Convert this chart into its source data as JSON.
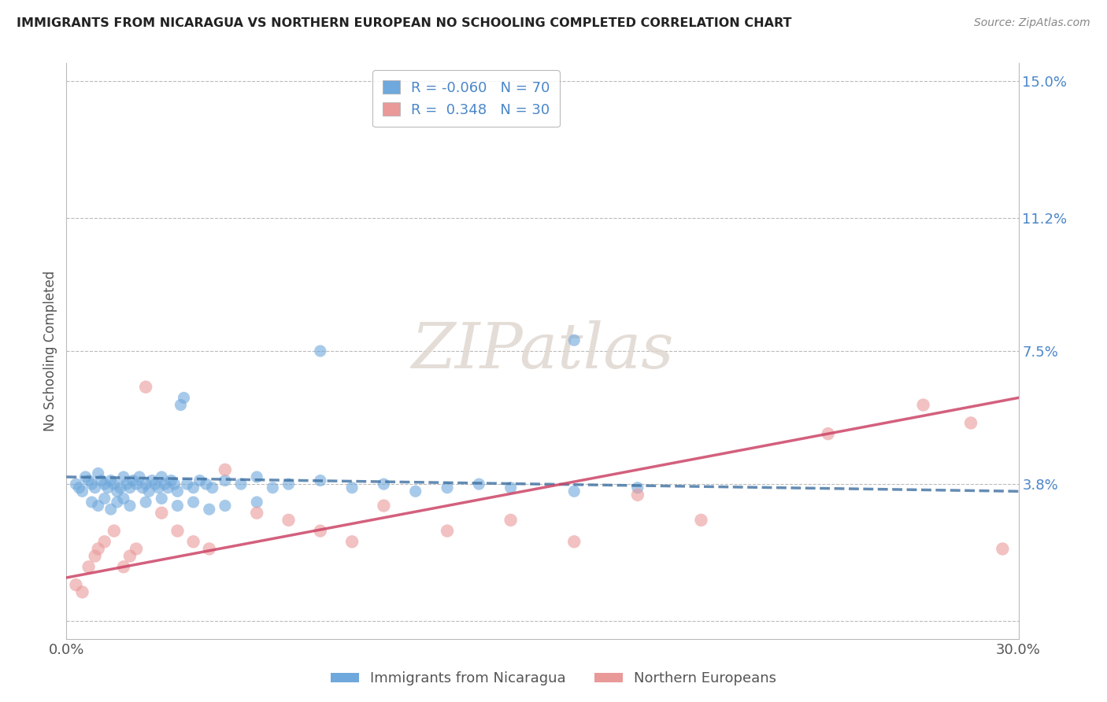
{
  "title": "IMMIGRANTS FROM NICARAGUA VS NORTHERN EUROPEAN NO SCHOOLING COMPLETED CORRELATION CHART",
  "source": "Source: ZipAtlas.com",
  "ylabel": "No Schooling Completed",
  "watermark": "ZIPatlas",
  "xlim": [
    0.0,
    0.3
  ],
  "ylim": [
    -0.005,
    0.155
  ],
  "yticks": [
    0.0,
    0.038,
    0.075,
    0.112,
    0.15
  ],
  "ytick_labels": [
    "",
    "3.8%",
    "7.5%",
    "11.2%",
    "15.0%"
  ],
  "xticks": [
    0.0,
    0.3
  ],
  "xtick_labels": [
    "0.0%",
    "30.0%"
  ],
  "blue_R": -0.06,
  "blue_N": 70,
  "pink_R": 0.348,
  "pink_N": 30,
  "blue_color": "#6fa8dc",
  "pink_color": "#ea9999",
  "blue_line_color": "#3d6fa0",
  "pink_line_color": "#cc4466",
  "blue_label": "Immigrants from Nicaragua",
  "pink_label": "Northern Europeans",
  "blue_scatter_x": [
    0.003,
    0.004,
    0.005,
    0.006,
    0.007,
    0.008,
    0.009,
    0.01,
    0.011,
    0.012,
    0.013,
    0.014,
    0.015,
    0.016,
    0.017,
    0.018,
    0.019,
    0.02,
    0.021,
    0.022,
    0.023,
    0.024,
    0.025,
    0.026,
    0.027,
    0.028,
    0.029,
    0.03,
    0.031,
    0.032,
    0.033,
    0.034,
    0.035,
    0.036,
    0.037,
    0.038,
    0.04,
    0.042,
    0.044,
    0.046,
    0.05,
    0.055,
    0.06,
    0.065,
    0.07,
    0.08,
    0.09,
    0.1,
    0.11,
    0.12,
    0.13,
    0.14,
    0.16,
    0.18,
    0.008,
    0.01,
    0.012,
    0.014,
    0.016,
    0.018,
    0.02,
    0.025,
    0.03,
    0.035,
    0.04,
    0.045,
    0.05,
    0.06,
    0.08,
    0.16
  ],
  "blue_scatter_y": [
    0.038,
    0.037,
    0.036,
    0.04,
    0.039,
    0.038,
    0.037,
    0.041,
    0.039,
    0.038,
    0.037,
    0.039,
    0.038,
    0.036,
    0.037,
    0.04,
    0.038,
    0.037,
    0.039,
    0.038,
    0.04,
    0.037,
    0.038,
    0.036,
    0.039,
    0.038,
    0.037,
    0.04,
    0.038,
    0.037,
    0.039,
    0.038,
    0.036,
    0.06,
    0.062,
    0.038,
    0.037,
    0.039,
    0.038,
    0.037,
    0.039,
    0.038,
    0.04,
    0.037,
    0.038,
    0.039,
    0.037,
    0.038,
    0.036,
    0.037,
    0.038,
    0.037,
    0.036,
    0.037,
    0.033,
    0.032,
    0.034,
    0.031,
    0.033,
    0.034,
    0.032,
    0.033,
    0.034,
    0.032,
    0.033,
    0.031,
    0.032,
    0.033,
    0.075,
    0.078
  ],
  "pink_scatter_x": [
    0.003,
    0.005,
    0.007,
    0.009,
    0.01,
    0.012,
    0.015,
    0.018,
    0.02,
    0.022,
    0.025,
    0.03,
    0.035,
    0.04,
    0.045,
    0.05,
    0.06,
    0.07,
    0.08,
    0.09,
    0.1,
    0.12,
    0.14,
    0.16,
    0.18,
    0.2,
    0.24,
    0.27,
    0.285,
    0.295
  ],
  "pink_scatter_y": [
    0.01,
    0.008,
    0.015,
    0.018,
    0.02,
    0.022,
    0.025,
    0.015,
    0.018,
    0.02,
    0.065,
    0.03,
    0.025,
    0.022,
    0.02,
    0.042,
    0.03,
    0.028,
    0.025,
    0.022,
    0.032,
    0.025,
    0.028,
    0.022,
    0.035,
    0.028,
    0.052,
    0.06,
    0.055,
    0.02
  ]
}
